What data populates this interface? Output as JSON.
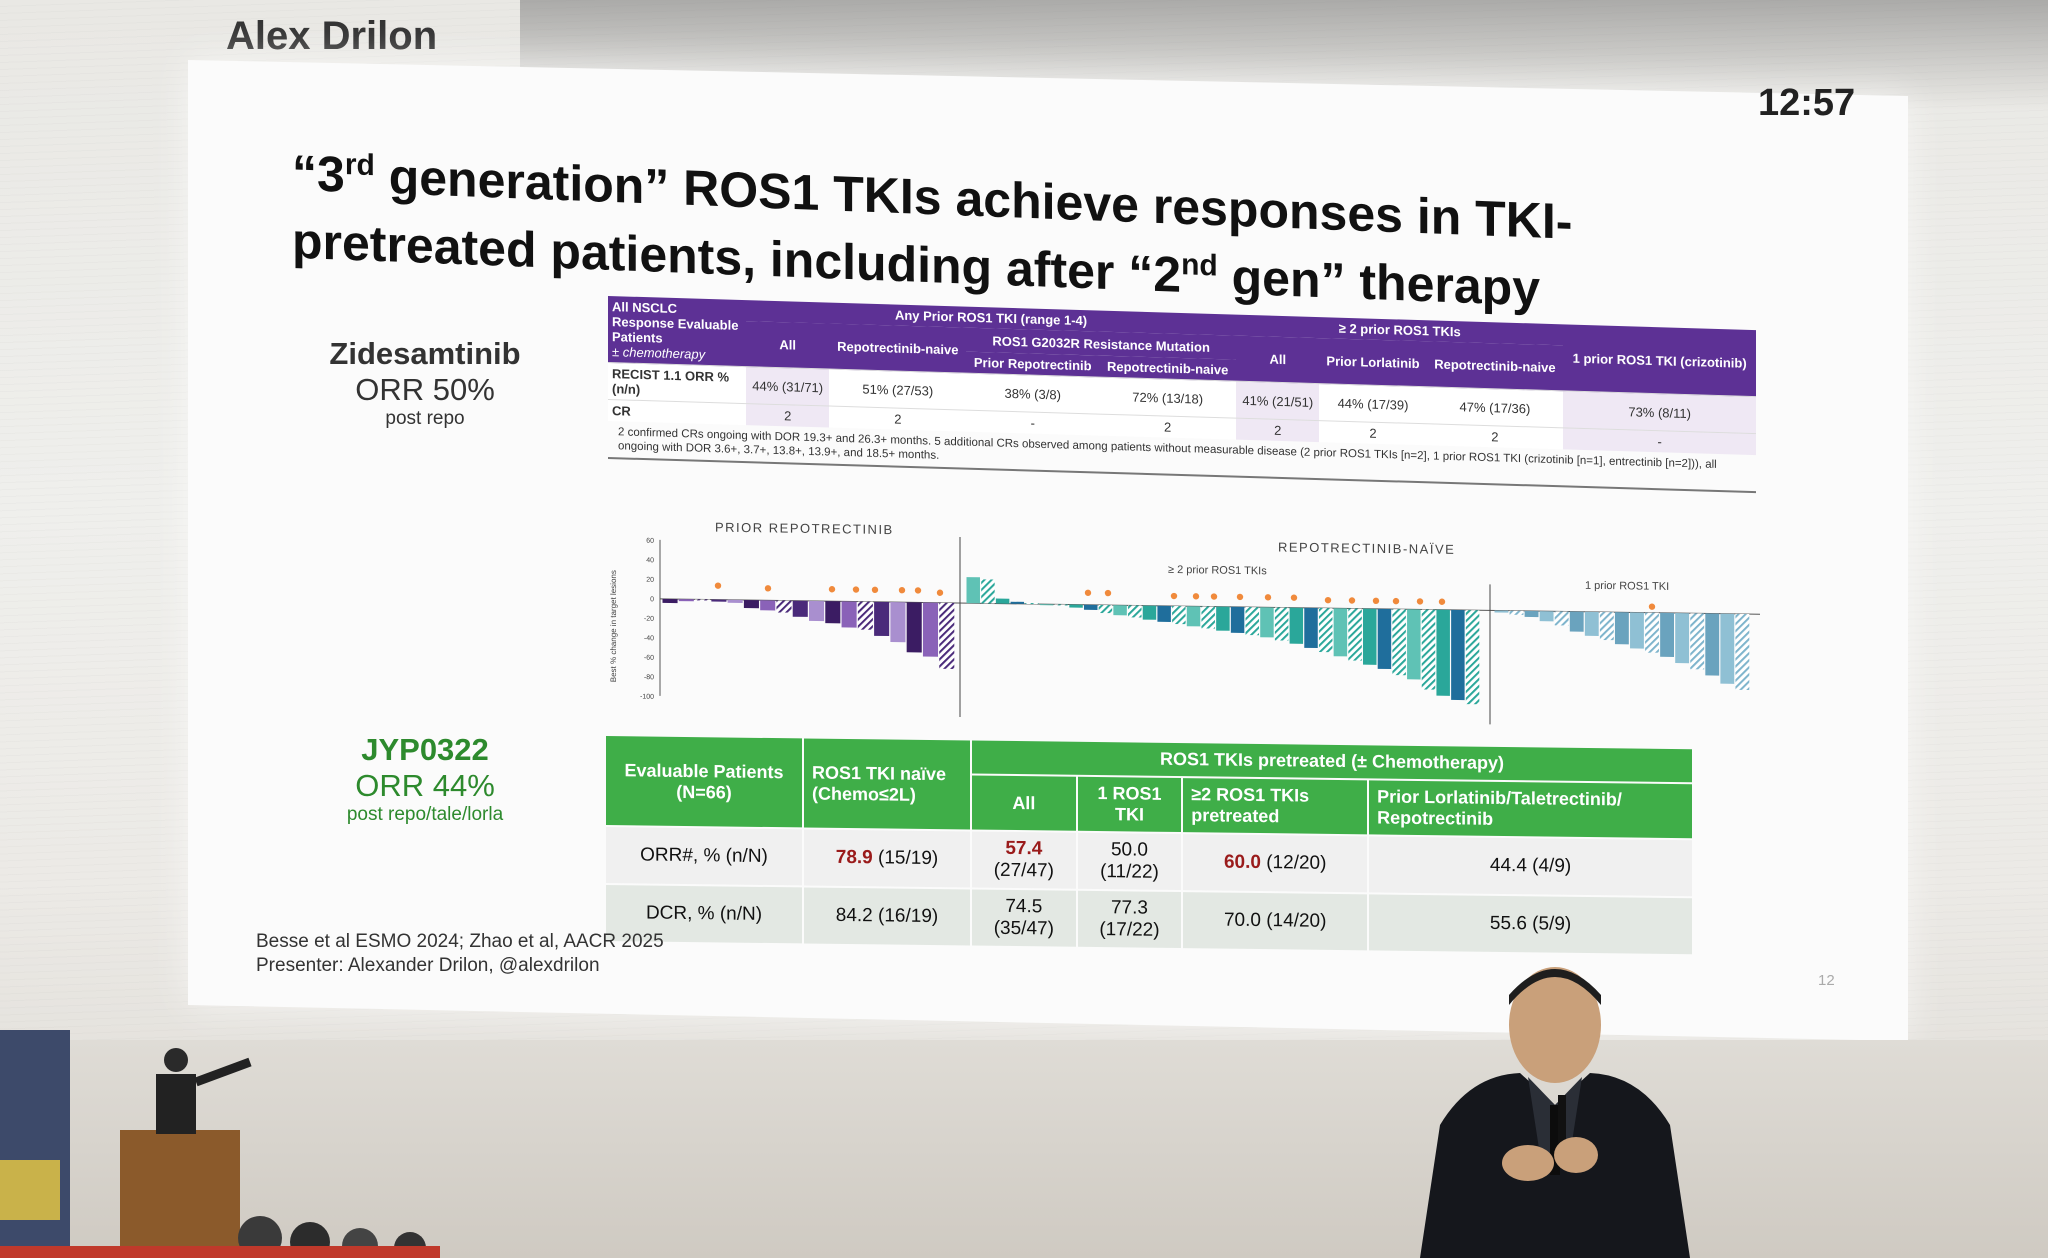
{
  "header": {
    "speaker": "Alex Drilon",
    "clock": "12:57"
  },
  "title": {
    "line1a": "“3",
    "sup1": "rd",
    "line1b": " generation” ROS1 TKIs achieve responses in TKI-",
    "line2a": "pretreated patients, including after “2",
    "sup2": "nd",
    "line2b": " gen” therapy"
  },
  "drugs": [
    {
      "name": "Zidesamtinib",
      "orr": "ORR 50%",
      "note": "post repo"
    },
    {
      "name": "JYP0322",
      "orr": "ORR 44%",
      "note": "post repo/tale/lorla"
    }
  ],
  "trident": {
    "corner_title": "All NSCLC Response Evaluable Patients",
    "corner_note": "± chemotherapy",
    "group_any": "Any Prior ROS1 TKI (range 1-4)",
    "group_g2032r": "ROS1 G2032R Resistance Mutation",
    "group_ge2": "≥ 2 prior ROS1 TKIs",
    "columns": [
      "All",
      "Repotrectinib-naive",
      "Prior Repotrectinib",
      "Repotrectinib-naive",
      "All",
      "Prior Lorlatinib",
      "Repotrectinib-naive",
      "1 prior ROS1 TKI (crizotinib)"
    ],
    "orr_label": "RECIST 1.1 ORR % (n/n)",
    "cr_label": "CR",
    "orr": [
      "44% (31/71)",
      "51% (27/53)",
      "38% (3/8)",
      "72% (13/18)",
      "41% (21/51)",
      "44% (17/39)",
      "47% (17/36)",
      "73% (8/11)"
    ],
    "cr": [
      "2",
      "2",
      "-",
      "2",
      "2",
      "2",
      "2",
      "-"
    ],
    "footnote": "2 confirmed CRs ongoing with DOR 19.3+ and 26.3+ months. 5 additional CRs observed among patients without measurable disease (2 prior ROS1 TKIs [n=2], 1 prior ROS1 TKI (crizotinib [n=1], entrectinib [n=2])), all ongoing with DOR 3.6+, 3.7+, 13.8+, 13.9+, and 18.5+ months."
  },
  "waterfall": {
    "label_prior": "PRIOR REPOTRECTINIB",
    "label_naive": "REPOTRECTINIB-NAÏVE",
    "sub_ge2": "≥ 2 prior ROS1 TKIs",
    "sub_one": "1 prior ROS1 TKI",
    "ylabel": "Best % change in target lesions",
    "yticks": [
      "60",
      "40",
      "20",
      "0",
      "-20",
      "-40",
      "-60",
      "-80",
      "-100"
    ]
  },
  "jyp": {
    "col_patients": "Evaluable Patients (N=66)",
    "col_naive": "ROS1 TKI naïve (Chemo≤2L)",
    "group_pretreated": "ROS1 TKIs pretreated (± Chemotherapy)",
    "sub_cols": [
      "All",
      "1 ROS1 TKI",
      "≥2 ROS1 TKIs pretreated",
      "Prior Lorlatinib/Taletrectinib/ Repotrectinib"
    ],
    "rows": [
      {
        "label": "ORR#, % (n/N)",
        "naive_hi": "78.9",
        "naive_rest": " (15/19)",
        "all_hi": "57.4",
        "all_rest": " (27/47)",
        "one": "50.0 (11/22)",
        "ge2_hi": "60.0",
        "ge2_rest": " (12/20)",
        "prior": "44.4 (4/9)"
      },
      {
        "label": "DCR, % (n/N)",
        "naive": "84.2 (16/19)",
        "all": "74.5 (35/47)",
        "one": "77.3 (17/22)",
        "ge2": "70.0 (14/20)",
        "prior": "55.6 (5/9)"
      }
    ]
  },
  "refs": {
    "line1": "Besse et al ESMO 2024; Zhao et al, AACR 2025",
    "line2": "Presenter: Alexander Drilon, @alexdrilon"
  },
  "page_number": "12"
}
